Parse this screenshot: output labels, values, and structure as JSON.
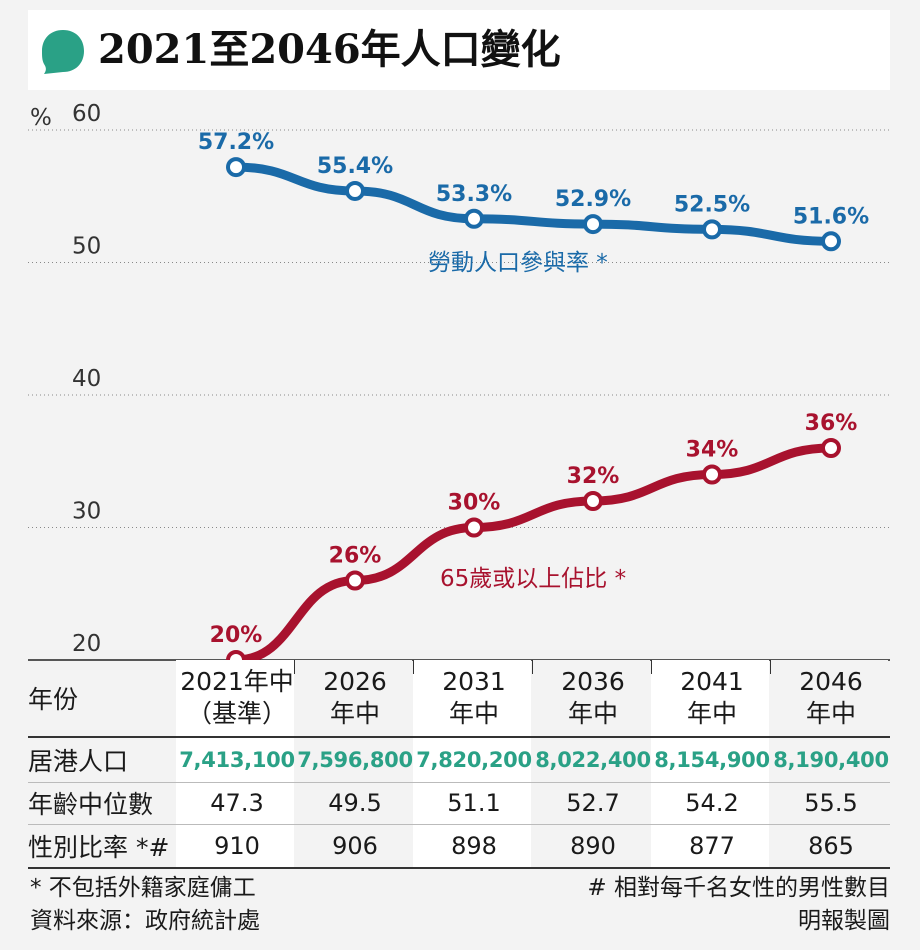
{
  "header": {
    "title": "2021至2046年人口變化",
    "icon": "speech-bubble-icon",
    "icon_color": "#2aa186"
  },
  "colors": {
    "labor": "#1a6aa8",
    "elderly": "#a8122e",
    "population": "#2aa186"
  },
  "chart_data": {
    "type": "line",
    "ylabel": "%",
    "ylim": [
      20,
      60
    ],
    "yticks": [
      "20",
      "30",
      "40",
      "50",
      "60"
    ],
    "x": [
      "2021",
      "2026",
      "2031",
      "2036",
      "2041",
      "2046"
    ],
    "series": [
      {
        "name": "勞動人口參與率 *",
        "values": [
          57.2,
          55.4,
          53.3,
          52.9,
          52.5,
          51.6
        ],
        "labels": [
          "57.2%",
          "55.4%",
          "53.3%",
          "52.9%",
          "52.5%",
          "51.6%"
        ]
      },
      {
        "name": "65歲或以上佔比 *",
        "values": [
          20,
          26,
          30,
          32,
          34,
          36
        ],
        "labels": [
          "20%",
          "26%",
          "30%",
          "32%",
          "34%",
          "36%"
        ]
      }
    ]
  },
  "table": {
    "year_label": "年份",
    "years": [
      {
        "line1": "2021年中",
        "line2": "（基準）"
      },
      {
        "line1": "2026",
        "line2": "年中"
      },
      {
        "line1": "2031",
        "line2": "年中"
      },
      {
        "line1": "2036",
        "line2": "年中"
      },
      {
        "line1": "2041",
        "line2": "年中"
      },
      {
        "line1": "2046",
        "line2": "年中"
      }
    ],
    "population_label": "居港人口",
    "population": [
      "7,413,100",
      "7,596,800",
      "7,820,200",
      "8,022,400",
      "8,154,900",
      "8,190,400"
    ],
    "median_age_label": "年齡中位數",
    "median_age": [
      "47.3",
      "49.5",
      "51.1",
      "52.7",
      "54.2",
      "55.5"
    ],
    "sex_ratio_label": "性別比率 *#",
    "sex_ratio": [
      "910",
      "906",
      "898",
      "890",
      "877",
      "865"
    ]
  },
  "footer": {
    "note_star": "* 不包括外籍家庭傭工",
    "source": "資料來源：政府統計處",
    "note_hash": "# 相對每千名女性的男性數目",
    "credit": "明報製圖"
  }
}
